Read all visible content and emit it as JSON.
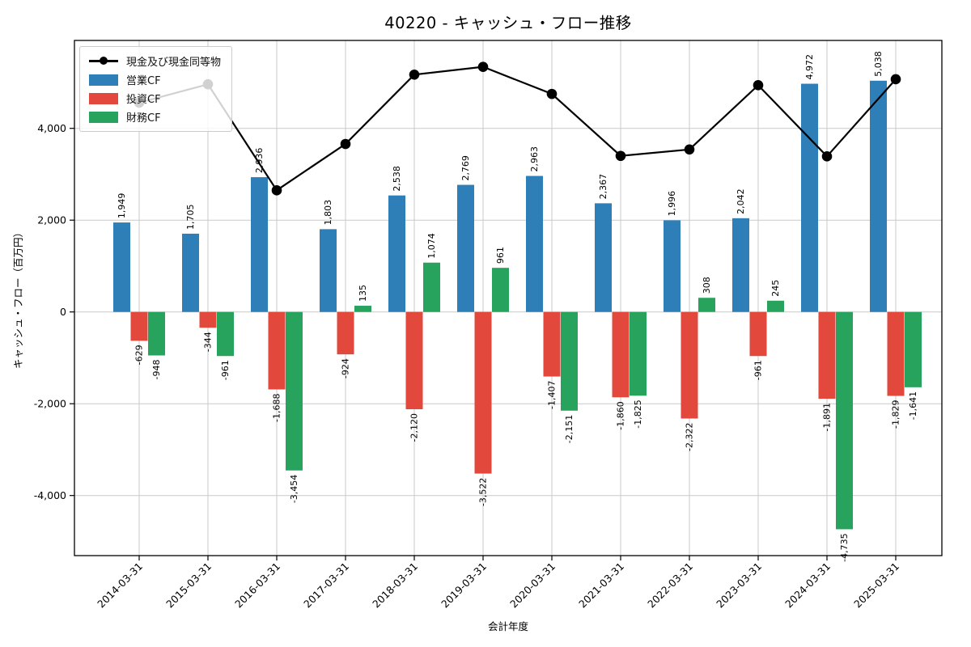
{
  "chart_data": {
    "type": "bar+line",
    "title": "40220 - キャッシュ・フロー推移",
    "xlabel": "会計年度",
    "ylabel": "キャッシュ・フロー（百万円）",
    "categories": [
      "2014-03-31",
      "2015-03-31",
      "2016-03-31",
      "2017-03-31",
      "2018-03-31",
      "2019-03-31",
      "2020-03-31",
      "2021-03-31",
      "2022-03-31",
      "2023-03-31",
      "2024-03-31",
      "2025-03-31"
    ],
    "series": [
      {
        "key": "cash-and-equivalents",
        "name": "現金及び現金同等物",
        "type": "line",
        "color": "#000000",
        "values_estimated": true,
        "values": [
          4560,
          4960,
          2650,
          3660,
          5170,
          5340,
          4750,
          3400,
          3540,
          4940,
          3390,
          5070
        ]
      },
      {
        "key": "operating-cf",
        "name": "営業CF",
        "type": "bar",
        "color": "#2e7eb8",
        "values": [
          1949,
          1705,
          2936,
          1803,
          2538,
          2769,
          2963,
          2367,
          1996,
          2042,
          4972,
          5038
        ]
      },
      {
        "key": "investing-cf",
        "name": "投資CF",
        "type": "bar",
        "color": "#e2493c",
        "values": [
          -629,
          -344,
          -1688,
          -924,
          -2120,
          -3522,
          -1407,
          -1860,
          -2322,
          -961,
          -1891,
          -1829
        ]
      },
      {
        "key": "financing-cf",
        "name": "財務CF",
        "type": "bar",
        "color": "#27a35e",
        "values": [
          -948,
          -961,
          -3454,
          135,
          1074,
          961,
          -2151,
          -1825,
          308,
          245,
          -4735,
          -1641
        ]
      }
    ],
    "yticks": [
      4000,
      2000,
      0,
      -2000,
      -4000
    ],
    "ylim": [
      -5330,
      5950
    ],
    "grid": true,
    "legend_position": "upper-left",
    "bar_value_labels": true,
    "bar_label_rotation": 90,
    "xtick_rotation": 45
  }
}
